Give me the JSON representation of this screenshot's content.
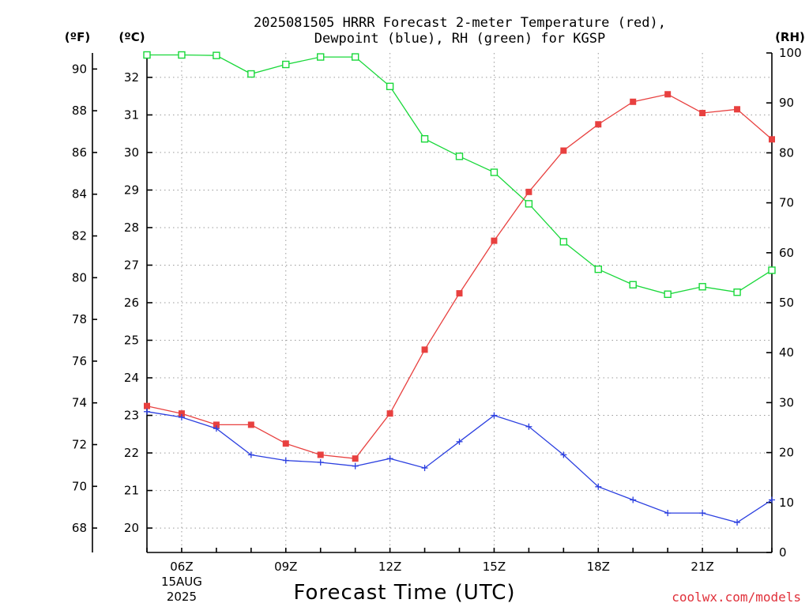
{
  "title_line1": "2025081505 HRRR Forecast 2-meter Temperature (red),",
  "title_line2": "Dewpoint (blue), RH (green) for KGSP",
  "credit": "coolwx.com/models",
  "chart_data": {
    "type": "line",
    "title": "2025081505 HRRR Forecast 2-meter Temperature (red), Dewpoint (blue), RH (green) for KGSP",
    "xlabel": "Forecast Time (UTC)",
    "x_hours_utc": [
      5,
      6,
      7,
      8,
      9,
      10,
      11,
      12,
      13,
      14,
      15,
      16,
      17,
      18,
      19,
      20,
      21,
      22,
      23
    ],
    "xlim": [
      5,
      23
    ],
    "x_ticks": [
      {
        "hour": 6,
        "label": "06Z",
        "sub1": "15AUG",
        "sub2": "2025"
      },
      {
        "hour": 9,
        "label": "09Z"
      },
      {
        "hour": 12,
        "label": "12Z"
      },
      {
        "hour": 15,
        "label": "15Z"
      },
      {
        "hour": 18,
        "label": "18Z"
      },
      {
        "hour": 21,
        "label": "21Z"
      }
    ],
    "axes": {
      "fahrenheit": {
        "label": "(ºF)",
        "ticks": [
          68,
          70,
          72,
          74,
          76,
          78,
          80,
          82,
          84,
          86,
          88,
          90
        ]
      },
      "celsius": {
        "label": "(ºC)",
        "ticks": [
          20,
          21,
          22,
          23,
          24,
          25,
          26,
          27,
          28,
          29,
          30,
          31,
          32
        ],
        "ylim": [
          19.35,
          32.65
        ]
      },
      "rh": {
        "label": "(RH)",
        "ticks": [
          0,
          10,
          20,
          30,
          40,
          50,
          60,
          70,
          80,
          90,
          100
        ],
        "ylim": [
          0,
          100
        ]
      }
    },
    "grid": true,
    "series": [
      {
        "name": "Temperature (red)",
        "axis": "celsius",
        "color": "#e8403f",
        "marker": "filled-square",
        "values": [
          23.25,
          23.05,
          22.75,
          22.75,
          22.25,
          21.95,
          21.85,
          23.05,
          24.75,
          26.25,
          27.65,
          28.95,
          30.05,
          30.75,
          31.35,
          31.55,
          31.05,
          31.15,
          30.35
        ]
      },
      {
        "name": "Dewpoint (blue)",
        "axis": "celsius",
        "color": "#2b3fe0",
        "marker": "plus",
        "values": [
          23.1,
          22.95,
          22.65,
          21.95,
          21.8,
          21.75,
          21.65,
          21.85,
          21.6,
          22.3,
          23.0,
          22.7,
          21.95,
          21.1,
          20.75,
          20.4,
          20.4,
          20.15,
          20.75
        ]
      },
      {
        "name": "RH (green)",
        "axis": "rh",
        "color": "#19d83a",
        "marker": "open-square",
        "values": [
          99.6,
          99.6,
          99.5,
          95.8,
          97.7,
          99.2,
          99.2,
          93.3,
          82.8,
          79.3,
          76.1,
          69.8,
          62.2,
          56.7,
          53.6,
          51.7,
          53.2,
          52.1,
          56.5
        ]
      }
    ]
  }
}
